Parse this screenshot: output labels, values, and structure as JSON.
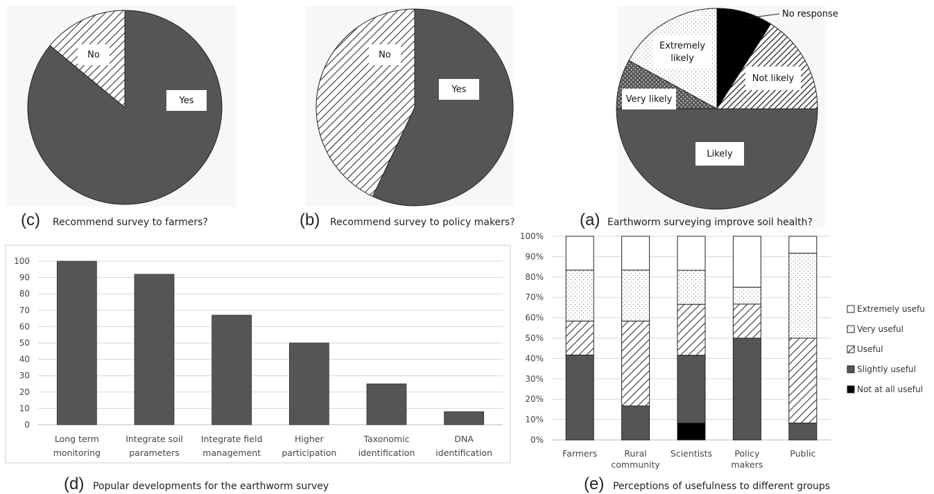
{
  "colors": {
    "dark": "#555555",
    "black": "#000000",
    "white": "#ffffff",
    "outline": "#222222"
  },
  "chart_data": [
    {
      "id": "c",
      "type": "pie",
      "letter": "(c)",
      "title": "Recommend survey to farmers?",
      "slices": [
        {
          "label": "Yes",
          "value": 86,
          "pattern": "dark"
        },
        {
          "label": "No",
          "value": 14,
          "pattern": "diag"
        }
      ]
    },
    {
      "id": "b",
      "type": "pie",
      "letter": "(b)",
      "title": "Recommend survey to policy makers?",
      "slices": [
        {
          "label": "Yes",
          "value": 57,
          "pattern": "dark"
        },
        {
          "label": "No",
          "value": 43,
          "pattern": "diag"
        }
      ]
    },
    {
      "id": "a",
      "type": "pie",
      "letter": "(a)",
      "title": "Earthworm surveying improve soil health?",
      "slices": [
        {
          "label": "No response",
          "value": 9,
          "pattern": "black"
        },
        {
          "label": "Not likely",
          "value": 16,
          "pattern": "diagdense"
        },
        {
          "label": "Likely",
          "value": 50,
          "pattern": "dark"
        },
        {
          "label": "Very likely",
          "value": 8,
          "pattern": "dots"
        },
        {
          "label": "Extremely likely",
          "value": 17,
          "pattern": "finedots"
        }
      ]
    },
    {
      "id": "d",
      "type": "bar",
      "letter": "(d)",
      "title": "Popular developments for the earthworm survey",
      "categories": [
        [
          "Long term",
          "monitoring"
        ],
        [
          "Integrate soil",
          "parameters"
        ],
        [
          "Integrate field",
          "management"
        ],
        [
          "Higher",
          "participation"
        ],
        [
          "Taxonomic",
          "identification"
        ],
        [
          "DNA",
          "identification"
        ]
      ],
      "values": [
        100,
        92,
        67,
        50,
        25,
        8
      ],
      "yticks": [
        "0",
        "10",
        "20",
        "30",
        "40",
        "50",
        "60",
        "70",
        "80",
        "90",
        "100"
      ],
      "ylim": [
        0,
        100
      ],
      "grid": true
    },
    {
      "id": "e",
      "type": "bar",
      "stacked": true,
      "letter": "(e)",
      "title": "Perceptions of usefulness to different groups",
      "categories": [
        [
          "Farmers"
        ],
        [
          "Rural",
          "community"
        ],
        [
          "Scientists"
        ],
        [
          "Policy",
          "makers"
        ],
        [
          "Public"
        ]
      ],
      "yticks": [
        "0%",
        "10%",
        "20%",
        "30%",
        "40%",
        "50%",
        "60%",
        "70%",
        "80%",
        "90%",
        "100%"
      ],
      "ylim": [
        0,
        100
      ],
      "grid": true,
      "legend_position": "right",
      "series": [
        {
          "name": "Not at all useful",
          "pattern": "black",
          "values": [
            0,
            0,
            8.3,
            0,
            0
          ]
        },
        {
          "name": "Slightly useful",
          "pattern": "dark",
          "values": [
            41.7,
            16.7,
            33.3,
            50,
            8.3
          ]
        },
        {
          "name": "Useful",
          "pattern": "diag",
          "values": [
            16.7,
            41.7,
            25,
            16.7,
            41.7
          ]
        },
        {
          "name": "Very useful",
          "pattern": "finedots",
          "values": [
            25,
            25,
            16.7,
            8.3,
            41.7
          ]
        },
        {
          "name": "Extremely usefu",
          "pattern": "white",
          "values": [
            16.6,
            16.6,
            16.7,
            25,
            8.3
          ]
        }
      ]
    }
  ]
}
